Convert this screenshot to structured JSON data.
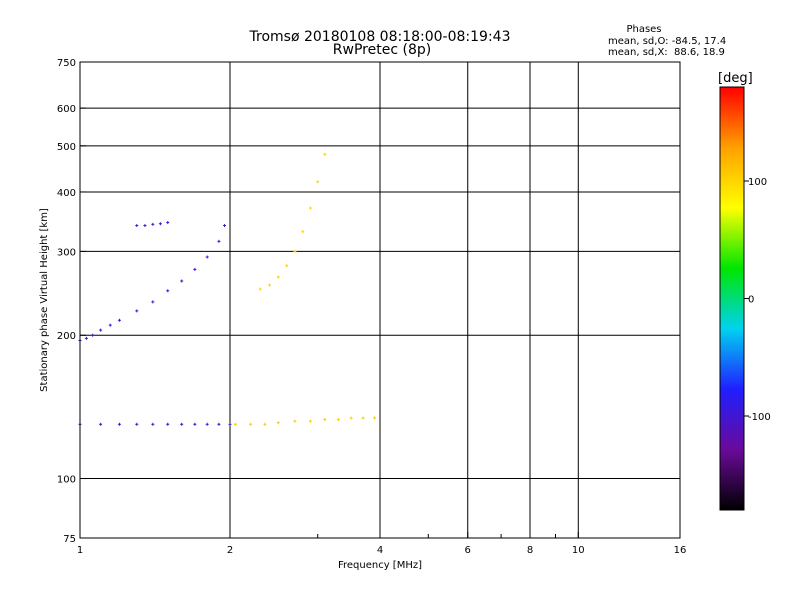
{
  "chart_data": {
    "type": "scatter",
    "title": "Tromsø 20180108 08:18:00-08:19:43",
    "subtitle": "RwPretec (8p)",
    "xlabel": "Frequency [MHz]",
    "ylabel": "Stationary phase Virtual Height [km]",
    "x_scale": "log",
    "y_scale": "log",
    "xlim": [
      1,
      16
    ],
    "ylim": [
      75,
      750
    ],
    "grid": true,
    "x_ticks": [
      1,
      2,
      4,
      6,
      8,
      10,
      16
    ],
    "x_tick_labels": [
      "1",
      "2",
      "4",
      "6",
      "8",
      "10",
      "16"
    ],
    "x_minor_ticks": [
      3,
      5,
      7,
      9
    ],
    "y_ticks": [
      75,
      100,
      200,
      300,
      400,
      500,
      600,
      750
    ],
    "y_tick_labels": [
      "75",
      "100",
      "200",
      "300",
      "400",
      "500",
      "600",
      "750"
    ],
    "phase_legend": {
      "title": "Phases",
      "line1": "mean, sd,O: -84.5, 17.4",
      "line2": "mean, sd,X:  88.6, 18.9"
    },
    "colorbar": {
      "label": "[deg]",
      "range": [
        -180,
        180
      ],
      "ticks": [
        -100,
        0,
        100
      ],
      "tick_labels": [
        "-100",
        "0",
        "100"
      ],
      "colors": [
        "#000000",
        "#6a0a9a",
        "#1f1fff",
        "#00d2f0",
        "#00e600",
        "#ffff00",
        "#ffa000",
        "#ff0000"
      ]
    },
    "series": [
      {
        "freq": [
          1.0,
          1.03,
          1.06,
          1.1,
          1.15,
          1.2,
          1.3,
          1.4,
          1.5,
          1.6,
          1.7,
          1.8,
          1.9,
          1.95
        ],
        "height": [
          195,
          197,
          200,
          205,
          210,
          215,
          225,
          235,
          248,
          260,
          275,
          292,
          315,
          340
        ],
        "phase": -105
      },
      {
        "freq": [
          1.0,
          1.1,
          1.2,
          1.3,
          1.4,
          1.5,
          1.6,
          1.7,
          1.8,
          1.9,
          2.0
        ],
        "height": [
          130,
          130,
          130,
          130,
          130,
          130,
          130,
          130,
          130,
          130,
          130
        ],
        "phase": -105
      },
      {
        "freq": [
          2.05,
          2.2,
          2.35,
          2.5,
          2.7,
          2.9,
          3.1,
          3.3,
          3.5,
          3.7,
          3.9
        ],
        "height": [
          130,
          130,
          130,
          131,
          132,
          132,
          133,
          133,
          134,
          134,
          134
        ],
        "phase": 105
      },
      {
        "freq": [
          1.3,
          1.35,
          1.4,
          1.45,
          1.5
        ],
        "height": [
          340,
          340,
          342,
          343,
          345
        ],
        "phase": -105
      },
      {
        "freq": [
          2.3,
          2.4,
          2.5,
          2.6,
          2.7,
          2.8,
          2.9,
          3.0,
          3.1
        ],
        "height": [
          250,
          255,
          265,
          280,
          300,
          330,
          370,
          420,
          480
        ],
        "phase": 100
      }
    ]
  }
}
